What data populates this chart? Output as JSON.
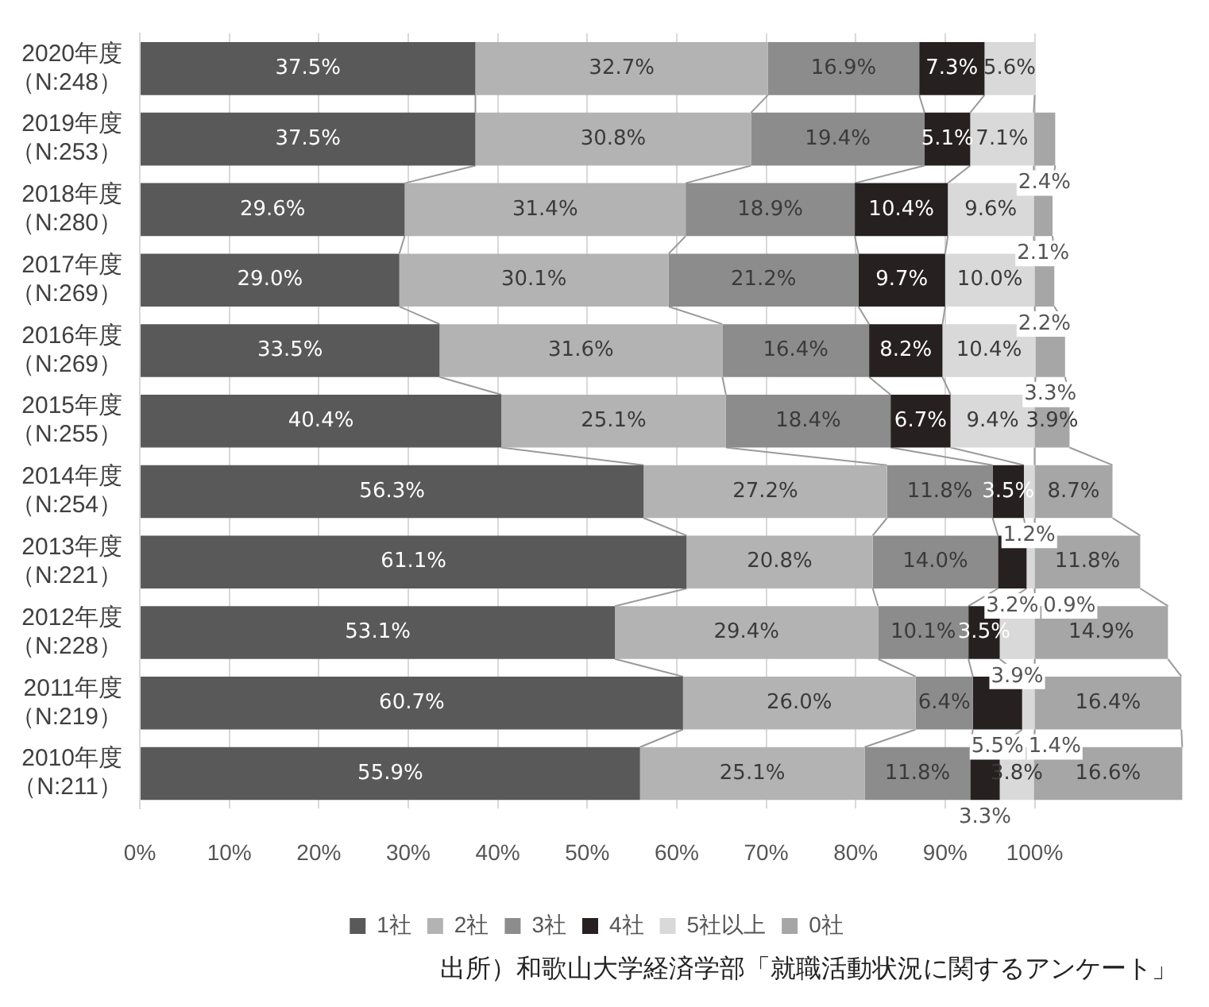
{
  "chart_data": {
    "type": "bar",
    "orientation": "horizontal",
    "stacked": true,
    "categories": [
      "2020年度（N:248）",
      "2019年度（N:253）",
      "2018年度（N:280）",
      "2017年度（N:269）",
      "2016年度（N:269）",
      "2015年度（N:255）",
      "2014年度（N:254）",
      "2013年度（N:221）",
      "2012年度（N:228）",
      "2011年度（N:219）",
      "2010年度（N:211）"
    ],
    "series": [
      {
        "name": "1社",
        "color": "#595959",
        "values": [
          37.5,
          37.5,
          29.6,
          29.0,
          33.5,
          40.4,
          56.3,
          61.1,
          53.1,
          60.7,
          55.9
        ],
        "value_labels": [
          "37.5%",
          "37.5%",
          "29.6%",
          "29.0%",
          "33.5%",
          "40.4%",
          "56.3%",
          "61.1%",
          "53.1%",
          "60.7%",
          "55.9%"
        ]
      },
      {
        "name": "2社",
        "color": "#b3b3b3",
        "values": [
          32.7,
          30.8,
          31.4,
          30.1,
          31.6,
          25.1,
          27.2,
          20.8,
          29.4,
          26.0,
          25.1
        ],
        "value_labels": [
          "32.7%",
          "30.8%",
          "31.4%",
          "30.1%",
          "31.6%",
          "25.1%",
          "27.2%",
          "20.8%",
          "29.4%",
          "26.0%",
          "25.1%"
        ]
      },
      {
        "name": "3社",
        "color": "#8c8c8c",
        "values": [
          16.9,
          19.4,
          18.9,
          21.2,
          16.4,
          18.4,
          11.8,
          14.0,
          10.1,
          6.4,
          11.8
        ],
        "value_labels": [
          "16.9%",
          "19.4%",
          "18.9%",
          "21.2%",
          "16.4%",
          "18.4%",
          "11.8%",
          "14.0%",
          "10.1%",
          "6.4%",
          "11.8%"
        ]
      },
      {
        "name": "4社",
        "color": "#262020",
        "values": [
          7.3,
          5.1,
          10.4,
          9.7,
          8.2,
          6.7,
          3.5,
          3.2,
          3.5,
          5.5,
          3.3
        ],
        "value_labels": [
          "7.3%",
          "5.1%",
          "10.4%",
          "9.7%",
          "8.2%",
          "6.7%",
          "3.5%",
          "3.2%",
          "3.5%",
          "5.5%",
          "3.3%"
        ]
      },
      {
        "name": "5社以上",
        "color": "#d9d9d9",
        "values": [
          5.6,
          7.1,
          9.6,
          10.0,
          10.4,
          9.4,
          1.2,
          0.9,
          3.9,
          1.4,
          3.8
        ],
        "value_labels": [
          "5.6%",
          "7.1%",
          "9.6%",
          "10.0%",
          "10.4%",
          "9.4%",
          "1.2%",
          "0.9%",
          "3.9%",
          "1.4%",
          "3.8%"
        ]
      },
      {
        "name": "0社",
        "color": "#a6a6a6",
        "values": [
          null,
          2.4,
          2.1,
          2.2,
          3.3,
          3.9,
          8.7,
          11.8,
          14.9,
          16.4,
          16.6
        ],
        "value_labels": [
          null,
          "2.4%",
          "2.1%",
          "2.2%",
          "3.3%",
          "3.9%",
          "8.7%",
          "11.8%",
          "14.9%",
          "16.4%",
          "16.6%"
        ]
      }
    ],
    "xlim": [
      0,
      117
    ],
    "xticks": [
      {
        "value": 0,
        "label": "0%"
      },
      {
        "value": 10,
        "label": "10%"
      },
      {
        "value": 20,
        "label": "20%"
      },
      {
        "value": 30,
        "label": "30%"
      },
      {
        "value": 40,
        "label": "40%"
      },
      {
        "value": 50,
        "label": "50%"
      },
      {
        "value": 60,
        "label": "60%"
      },
      {
        "value": 70,
        "label": "70%"
      },
      {
        "value": 80,
        "label": "80%"
      },
      {
        "value": 90,
        "label": "90%"
      },
      {
        "value": 100,
        "label": "100%"
      }
    ],
    "grid": "x",
    "legend": "bottom",
    "annotations": [
      "出所）和歌山大学経済学部「就職活動状況に関するアンケート」"
    ]
  }
}
